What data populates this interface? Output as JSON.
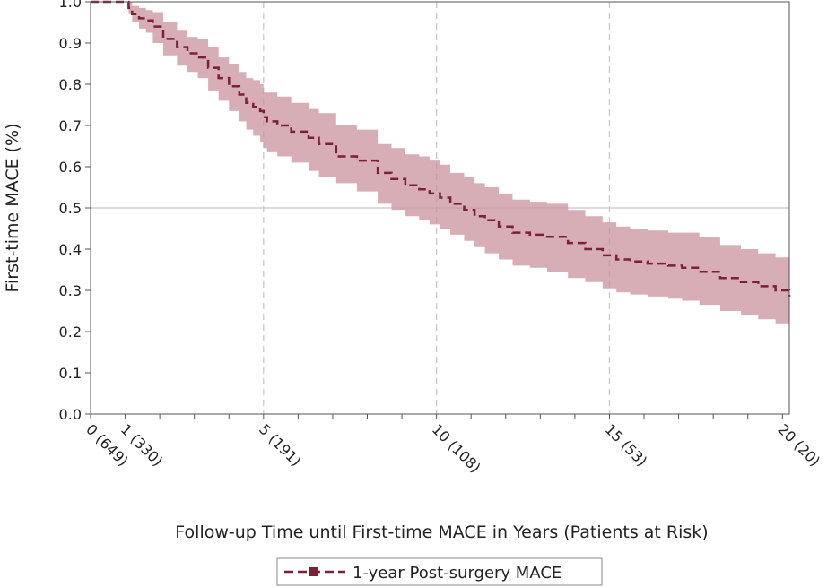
{
  "chart_data": {
    "type": "line",
    "title": "",
    "xlabel": "Follow-up Time until First-time MACE in Years (Patients at Risk)",
    "ylabel": "First-time MACE (%)",
    "xlim": [
      0,
      20.2
    ],
    "ylim": [
      0,
      1.0
    ],
    "y_ticks": [
      0.0,
      0.1,
      0.2,
      0.3,
      0.4,
      0.5,
      0.6,
      0.7,
      0.8,
      0.9,
      1.0
    ],
    "y_tick_labels": [
      "0.0",
      "0.1",
      "0.2",
      "0.3",
      "0.4",
      "0.5",
      "0.6",
      "0.7",
      "0.8",
      "0.9",
      "1.0"
    ],
    "x_minor_ticks": [
      0,
      1,
      2,
      3,
      4,
      5,
      6,
      7,
      8,
      9,
      10,
      11,
      12,
      13,
      14,
      15,
      16,
      17,
      18,
      19,
      20
    ],
    "x_tick_labels": [
      {
        "x": 0,
        "label": "0 (649)"
      },
      {
        "x": 1,
        "label": "1 (330)"
      },
      {
        "x": 5,
        "label": "5 (191)"
      },
      {
        "x": 10,
        "label": "10 (108)"
      },
      {
        "x": 15,
        "label": "15 (53)"
      },
      {
        "x": 20,
        "label": "20 (20)"
      }
    ],
    "reference_lines": {
      "vertical_x": [
        5,
        10,
        15
      ],
      "horizontal_y": [
        0.5
      ]
    },
    "grid": false,
    "legend_position": "bottom-center",
    "series": [
      {
        "name": "1-year Post-surgery MACE",
        "color": "#7b2035",
        "band_color": "#c9929e",
        "x": [
          0,
          1.0,
          1.1,
          1.2,
          1.4,
          1.6,
          1.8,
          2.1,
          2.5,
          2.8,
          3.1,
          3.4,
          3.7,
          4.0,
          4.3,
          4.5,
          4.7,
          4.9,
          5.0,
          5.1,
          5.4,
          5.8,
          6.3,
          6.6,
          7.1,
          7.7,
          8.3,
          8.7,
          9.1,
          9.5,
          9.8,
          10.1,
          10.4,
          10.8,
          11.1,
          11.4,
          11.8,
          12.2,
          12.7,
          13.2,
          13.8,
          14.3,
          14.8,
          15.2,
          15.6,
          16.1,
          16.7,
          17.1,
          17.6,
          18.2,
          18.8,
          19.3,
          19.8,
          20.2
        ],
        "y": [
          1.0,
          1.0,
          0.985,
          0.97,
          0.96,
          0.955,
          0.94,
          0.91,
          0.89,
          0.875,
          0.865,
          0.84,
          0.815,
          0.795,
          0.775,
          0.755,
          0.745,
          0.735,
          0.72,
          0.71,
          0.7,
          0.685,
          0.67,
          0.655,
          0.625,
          0.615,
          0.585,
          0.57,
          0.555,
          0.545,
          0.535,
          0.525,
          0.51,
          0.495,
          0.48,
          0.47,
          0.455,
          0.44,
          0.435,
          0.43,
          0.415,
          0.4,
          0.385,
          0.375,
          0.37,
          0.365,
          0.36,
          0.355,
          0.345,
          0.33,
          0.32,
          0.31,
          0.3,
          0.285
        ],
        "lower": [
          1.0,
          1.0,
          0.97,
          0.95,
          0.935,
          0.925,
          0.9,
          0.87,
          0.845,
          0.83,
          0.815,
          0.785,
          0.76,
          0.735,
          0.71,
          0.69,
          0.675,
          0.66,
          0.645,
          0.635,
          0.625,
          0.61,
          0.59,
          0.575,
          0.56,
          0.54,
          0.51,
          0.495,
          0.48,
          0.47,
          0.46,
          0.45,
          0.435,
          0.42,
          0.405,
          0.39,
          0.375,
          0.36,
          0.355,
          0.345,
          0.33,
          0.32,
          0.305,
          0.295,
          0.29,
          0.285,
          0.28,
          0.275,
          0.265,
          0.25,
          0.24,
          0.23,
          0.22,
          0.205
        ],
        "upper": [
          1.0,
          1.0,
          1.0,
          0.99,
          0.985,
          0.98,
          0.975,
          0.95,
          0.93,
          0.915,
          0.91,
          0.89,
          0.865,
          0.85,
          0.83,
          0.815,
          0.81,
          0.8,
          0.78,
          0.78,
          0.77,
          0.755,
          0.74,
          0.73,
          0.7,
          0.69,
          0.655,
          0.645,
          0.63,
          0.625,
          0.615,
          0.605,
          0.585,
          0.575,
          0.56,
          0.55,
          0.535,
          0.52,
          0.515,
          0.51,
          0.495,
          0.48,
          0.465,
          0.455,
          0.45,
          0.445,
          0.44,
          0.44,
          0.43,
          0.41,
          0.4,
          0.39,
          0.38,
          0.36
        ]
      }
    ]
  }
}
